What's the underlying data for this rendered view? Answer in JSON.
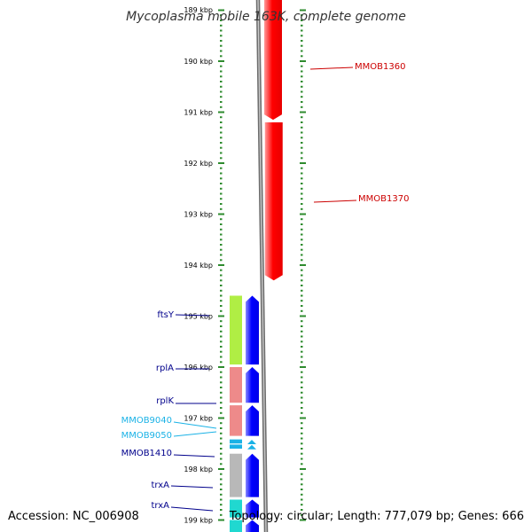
{
  "title": "Mycoplasma mobile 163K, complete genome",
  "footer": {
    "accession": "Accession: NC_006908",
    "summary": "Topology: circular; Length: 777,079 bp; Genes: 666"
  },
  "ruler": {
    "unit": "kbp",
    "top_label": "189 kbp",
    "labels": [
      "190 kbp",
      "191 kbp",
      "192 kbp",
      "193 kbp",
      "194 kbp",
      "195 kbp",
      "196 kbp",
      "197 kbp",
      "198 kbp",
      "199 kbp"
    ]
  },
  "colors": {
    "background": "#ffffff",
    "reverse_gene": "#ff0000",
    "forward_gene": "#0000ff",
    "label_forward": "#00008b",
    "label_reverse": "#cc0000",
    "label_rna": "#1ab2e6",
    "tick_green": "#2e8b2e"
  },
  "reverse_genes": [
    {
      "name": "MMOB1360",
      "start_kbp": 188.8,
      "end_kbp": 191.15
    },
    {
      "name": "MMOB1370",
      "start_kbp": 191.2,
      "end_kbp": 194.3
    }
  ],
  "forward_genes": [
    {
      "name": "ftsY",
      "start_kbp": 194.6,
      "end_kbp": 195.95,
      "feature_color": "#b0ee44"
    },
    {
      "name": "rplA",
      "start_kbp": 196.0,
      "end_kbp": 196.7,
      "feature_color": "#ee8a8a"
    },
    {
      "name": "rplK",
      "start_kbp": 196.75,
      "end_kbp": 197.35,
      "feature_color": "#ee8a8a"
    },
    {
      "name": "MMOB9040",
      "start_kbp": 197.42,
      "end_kbp": 197.5,
      "feature_color": "#1ab2e6"
    },
    {
      "name": "MMOB9050",
      "start_kbp": 197.52,
      "end_kbp": 197.6,
      "feature_color": "#1ab2e6"
    },
    {
      "name": "MMOB1410",
      "start_kbp": 197.7,
      "end_kbp": 198.55,
      "feature_color": "#b8b8b8"
    },
    {
      "name": "trxA",
      "start_kbp": 198.6,
      "end_kbp": 198.95,
      "feature_color": "#20d8d0"
    },
    {
      "name": "trxA",
      "start_kbp": 199.0,
      "end_kbp": 199.35,
      "feature_color": "#20d8d0"
    }
  ],
  "gene_labels": [
    {
      "text": "MMOB1360",
      "strand": "reverse",
      "kind": "protein"
    },
    {
      "text": "MMOB1370",
      "strand": "reverse",
      "kind": "protein"
    },
    {
      "text": "ftsY",
      "strand": "forward",
      "kind": "protein"
    },
    {
      "text": "rplA",
      "strand": "forward",
      "kind": "protein"
    },
    {
      "text": "rplK",
      "strand": "forward",
      "kind": "protein"
    },
    {
      "text": "MMOB9040",
      "strand": "forward",
      "kind": "rna"
    },
    {
      "text": "MMOB9050",
      "strand": "forward",
      "kind": "rna"
    },
    {
      "text": "MMOB1410",
      "strand": "forward",
      "kind": "protein"
    },
    {
      "text": "trxA",
      "strand": "forward",
      "kind": "protein"
    },
    {
      "text": "trxA",
      "strand": "forward",
      "kind": "protein"
    }
  ]
}
